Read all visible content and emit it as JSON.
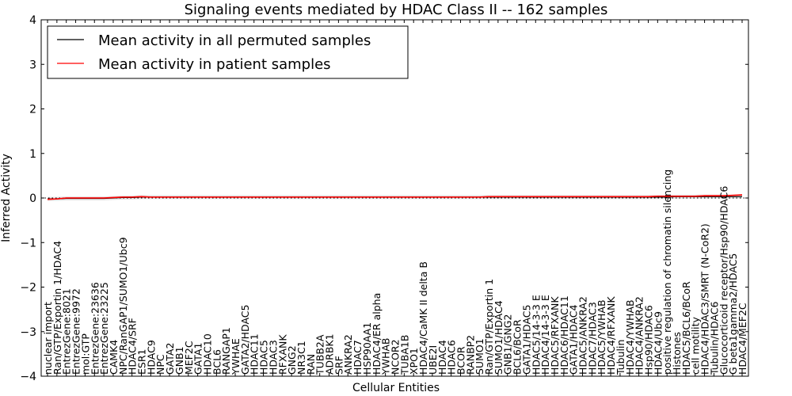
{
  "chart_data": {
    "type": "line",
    "title": "Signaling events mediated by HDAC Class II -- 162 samples",
    "xlabel": "Cellular Entities",
    "ylabel": "Inferred Activity",
    "ylim": [
      -4,
      4
    ],
    "yticks": [
      "4",
      "3",
      "2",
      "1",
      "0",
      "−1",
      "−2",
      "−3",
      "−4"
    ],
    "ytick_values": [
      4,
      3,
      2,
      1,
      0,
      -1,
      -2,
      -3,
      -4
    ],
    "legend_position": "top-left",
    "categories": [
      "nuclear import",
      "Ran/GTP/Exportin 1/HDAC4",
      "EntrezGene:8021",
      "EntrezGene:9972",
      "mol:GTP",
      "EntrezGene:23636",
      "EntrezGene:23225",
      "CAMK4",
      "NPC/RanGAP1/SUMO1/Ubc9",
      "HDAC4/SRF",
      "ESR1",
      "HDAC9",
      "NPC",
      "GATA2",
      "GNB1",
      "MEF2C",
      "GATA1",
      "HDAC10",
      "BCL6",
      "RANGAP1",
      "YWHAE",
      "GATA2/HDAC5",
      "HDAC11",
      "HDAC5",
      "HDAC3",
      "RFXANK",
      "GNG2",
      "NR3C1",
      "RAN",
      "TUBB2A",
      "ADRBK1",
      "SRF",
      "ANKRA2",
      "HDAC7",
      "HSP90AA1",
      "HDAC4/ER alpha",
      "YWHAB",
      "NCOR2",
      "TUBA1B",
      "XPO1",
      "HDAC4/CaMK II delta B",
      "UBE2I",
      "HDAC4",
      "HDAC6",
      "BCOR",
      "RANBP2",
      "SUMO1",
      "Ran/GTP/Exportin 1",
      "SUMO1/HDAC4",
      "GNB1/GNG2",
      "BCL6/BCoR",
      "GATA1/HDAC5",
      "HDAC5/14-3-3 E",
      "HDAC4/14-3-3 E",
      "HDAC5/RFXANK",
      "HDAC6/HDAC11",
      "GATA1/HDAC4",
      "HDAC5/ANKRA2",
      "HDAC7/HDAC3",
      "HDAC5/YWHAB",
      "HDAC4/RFXANK",
      "Tubulin",
      "HDAC4/YWHAB",
      "HDAC4/ANKRA2",
      "Hsp90/HDAC6",
      "HDAC4/Ubc9",
      "positive regulation of chromatin silencing",
      "Histones",
      "HDAC5/BCL6/BCoR",
      "cell motility",
      "HDAC4/HDAC3/SMRT (N-CoR2)",
      "Tubulin/HDAC6",
      "Glucocorticoid receptor/Hsp90/HDAC6",
      "G beta1gamma2/HDAC5",
      "HDAC4/MEF2C"
    ],
    "series": [
      {
        "name": "Mean activity in all permuted samples",
        "color": "#000000",
        "values": [
          -0.02,
          -0.02,
          -0.01,
          -0.01,
          -0.01,
          -0.01,
          -0.01,
          0.0,
          0.01,
          0.01,
          0.02,
          0.02,
          0.02,
          0.02,
          0.02,
          0.02,
          0.02,
          0.02,
          0.02,
          0.02,
          0.02,
          0.02,
          0.02,
          0.02,
          0.02,
          0.02,
          0.02,
          0.02,
          0.02,
          0.02,
          0.02,
          0.02,
          0.02,
          0.02,
          0.02,
          0.02,
          0.02,
          0.02,
          0.02,
          0.02,
          0.02,
          0.02,
          0.02,
          0.02,
          0.02,
          0.02,
          0.02,
          0.02,
          0.02,
          0.02,
          0.02,
          0.02,
          0.02,
          0.02,
          0.02,
          0.02,
          0.02,
          0.02,
          0.02,
          0.02,
          0.02,
          0.02,
          0.02,
          0.02,
          0.02,
          0.02,
          0.02,
          0.03,
          0.03,
          0.03,
          0.03,
          0.03,
          0.03,
          0.03,
          0.03
        ]
      },
      {
        "name": "Mean activity in patient samples",
        "color": "#ff0000",
        "values": [
          -0.03,
          -0.02,
          0.0,
          0.0,
          0.0,
          0.0,
          0.0,
          0.01,
          0.02,
          0.02,
          0.03,
          0.02,
          0.02,
          0.02,
          0.02,
          0.02,
          0.02,
          0.02,
          0.02,
          0.02,
          0.02,
          0.02,
          0.02,
          0.02,
          0.02,
          0.02,
          0.02,
          0.02,
          0.02,
          0.02,
          0.02,
          0.02,
          0.02,
          0.02,
          0.02,
          0.02,
          0.02,
          0.02,
          0.02,
          0.02,
          0.02,
          0.02,
          0.02,
          0.02,
          0.02,
          0.02,
          0.02,
          0.03,
          0.03,
          0.03,
          0.03,
          0.03,
          0.03,
          0.03,
          0.03,
          0.03,
          0.03,
          0.03,
          0.03,
          0.03,
          0.03,
          0.03,
          0.03,
          0.03,
          0.03,
          0.04,
          0.04,
          0.04,
          0.04,
          0.04,
          0.05,
          0.05,
          0.05,
          0.06,
          0.07
        ]
      }
    ]
  }
}
